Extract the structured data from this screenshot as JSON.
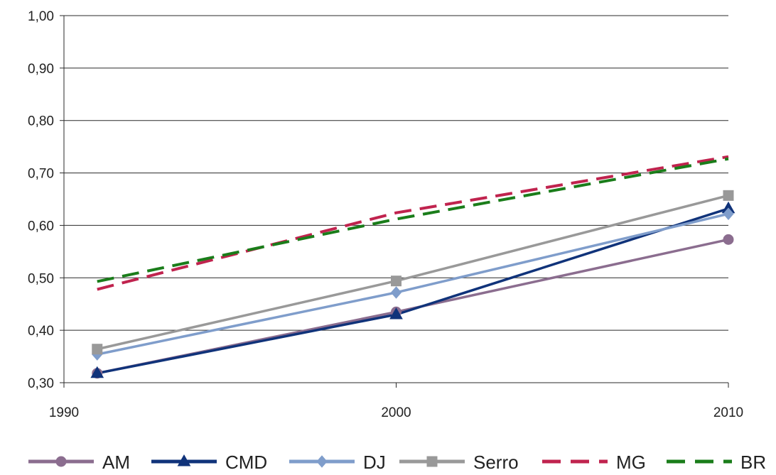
{
  "chart_data": {
    "type": "line",
    "title": "",
    "xlabel": "",
    "ylabel": "",
    "ylim": [
      0.3,
      1.0
    ],
    "y_ticks": [
      "0,30",
      "0,40",
      "0,50",
      "0,60",
      "0,70",
      "0,80",
      "0,90",
      "1,00"
    ],
    "x_ticks": [
      "1990",
      "2000",
      "2010"
    ],
    "grid": true,
    "legend_position": "bottom",
    "x": [
      1991,
      2000,
      2010
    ],
    "series": [
      {
        "name": "AM",
        "values": [
          0.318,
          0.435,
          0.573
        ],
        "color": "#8b6d8f",
        "marker": "circle",
        "dashed": false
      },
      {
        "name": "CMD",
        "values": [
          0.318,
          0.43,
          0.632
        ],
        "color": "#10337a",
        "marker": "triangle",
        "dashed": false
      },
      {
        "name": "DJ",
        "values": [
          0.354,
          0.472,
          0.622
        ],
        "color": "#7f9dcb",
        "marker": "diamond",
        "dashed": false
      },
      {
        "name": "Serro",
        "values": [
          0.364,
          0.494,
          0.657
        ],
        "color": "#999999",
        "marker": "square",
        "dashed": false
      },
      {
        "name": "MG",
        "values": [
          0.478,
          0.624,
          0.731
        ],
        "color": "#c0234e",
        "marker": "none",
        "dashed": true
      },
      {
        "name": "BR",
        "values": [
          0.493,
          0.612,
          0.727
        ],
        "color": "#1a7d1a",
        "marker": "none",
        "dashed": true
      }
    ]
  }
}
